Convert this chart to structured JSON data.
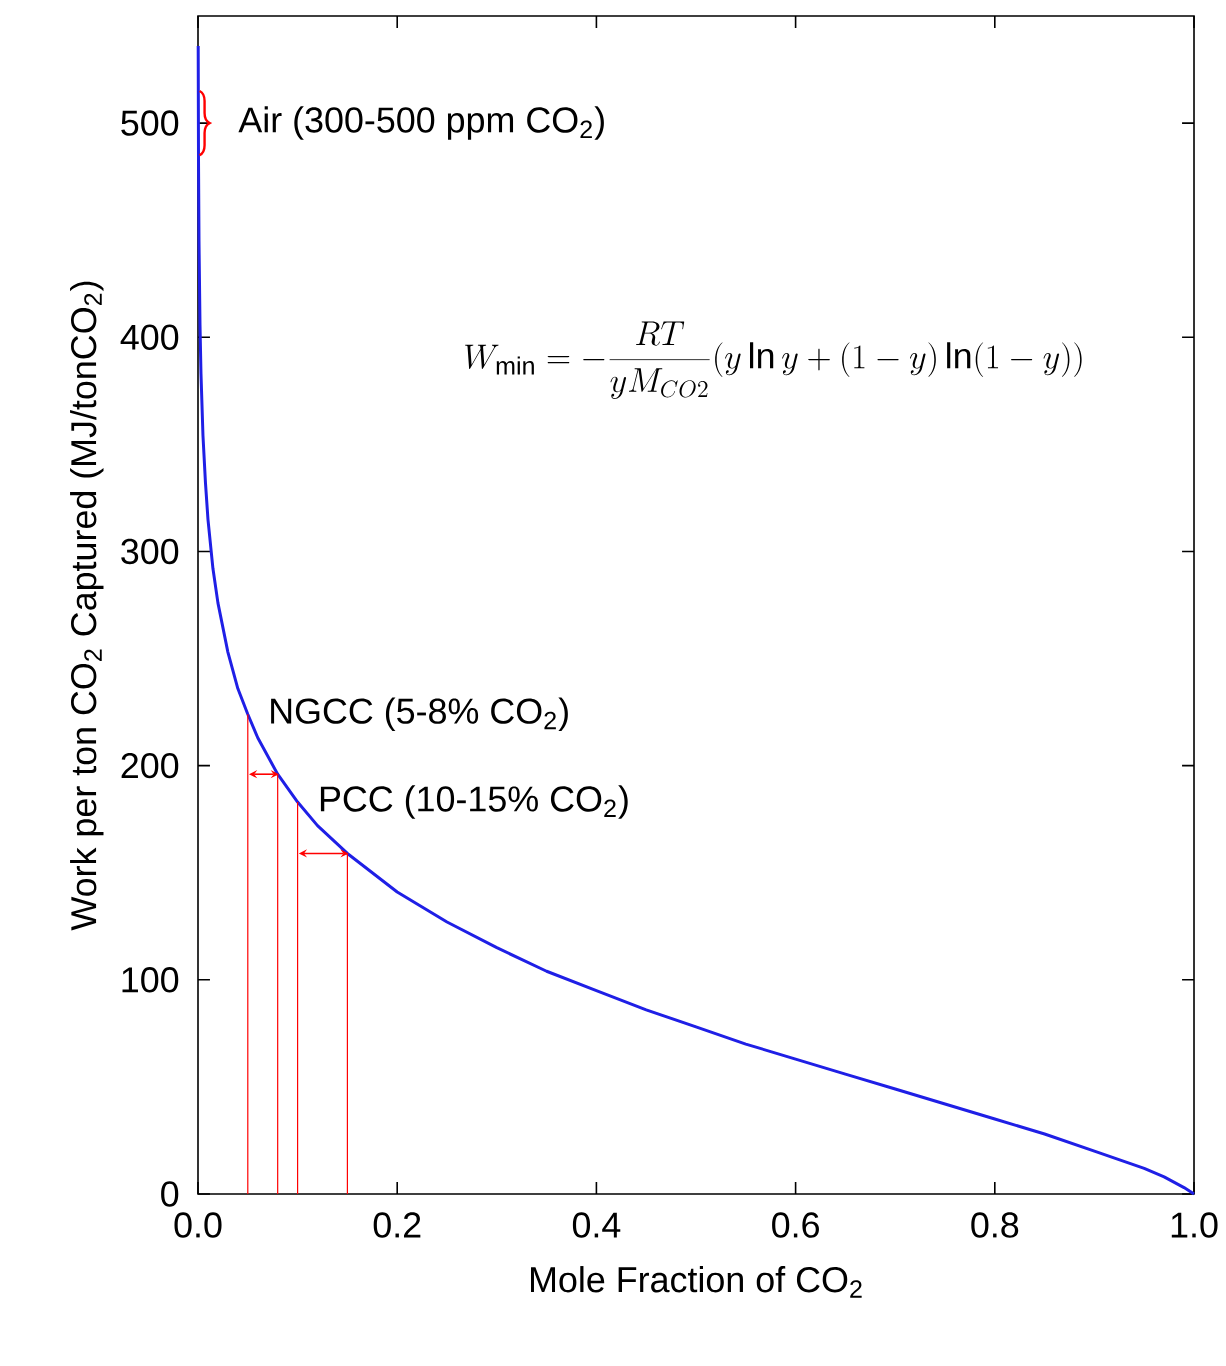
{
  "chart_data": {
    "type": "line",
    "xlabel": "Mole Fraction of CO$_{2}$",
    "ylabel": "Work per ton CO$_{2}$ Captured (MJ/tonCO$_{2}$)",
    "xlim": [
      0,
      1
    ],
    "ylim": [
      0,
      550
    ],
    "xticks": [
      {
        "value": 0,
        "label": "0.0"
      },
      {
        "value": 0.2,
        "label": "0.2"
      },
      {
        "value": 0.4,
        "label": "0.4"
      },
      {
        "value": 0.6,
        "label": "0.6"
      },
      {
        "value": 0.8,
        "label": "0.8"
      },
      {
        "value": 1,
        "label": "1.0"
      }
    ],
    "yticks": [
      0,
      100,
      200,
      300,
      400,
      500
    ],
    "series": [
      {
        "color": "#1f1fe6",
        "x": [
          0.0002,
          0.0005,
          0.001,
          0.002,
          0.003,
          0.005,
          0.0075,
          0.01,
          0.015,
          0.02,
          0.03,
          0.04,
          0.05,
          0.06,
          0.08,
          0.1,
          0.12,
          0.15,
          0.2,
          0.25,
          0.3,
          0.35,
          0.4,
          0.45,
          0.5,
          0.55,
          0.6,
          0.65,
          0.7,
          0.75,
          0.8,
          0.85,
          0.9,
          0.95,
          0.97,
          0.99,
          1.0
        ],
        "values": [
          536,
          484,
          445,
          406,
          383,
          354,
          332,
          315,
          292,
          276,
          253,
          236,
          224,
          213,
          196,
          183,
          172,
          159,
          141,
          127,
          115,
          104,
          95,
          86,
          78,
          70,
          63,
          56,
          49,
          42,
          35,
          28,
          20,
          12,
          8,
          3,
          0
        ]
      },
      {
        "type": "line",
        "color": "#ff0000",
        "x": [
          0.05,
          0.05
        ],
        "values": [
          0,
          224
        ]
      },
      {
        "type": "line",
        "color": "#ff0000",
        "x": [
          0.08,
          0.08
        ],
        "values": [
          0,
          196
        ]
      },
      {
        "type": "line",
        "color": "#ff0000",
        "x": [
          0.1,
          0.1
        ],
        "values": [
          0,
          183
        ]
      },
      {
        "type": "line",
        "color": "#ff0000",
        "x": [
          0.15,
          0.15
        ],
        "values": [
          0,
          159
        ]
      }
    ],
    "annotations": [
      {
        "text": "Air (300-500 ppm CO$_{2}$)",
        "x": 0,
        "y": 500
      },
      {
        "text": "NGCC (5-8% CO$_{2}$)",
        "x": 0.05,
        "y": 224
      },
      {
        "text": "PCC (10-15% CO$_{2}$)",
        "x": 0.1,
        "y": 183
      },
      "W_{\\min} = -\\frac{RT}{yM_{CO2}}(y\\ln y+(1-y)\\ln(1-y))"
    ]
  }
}
